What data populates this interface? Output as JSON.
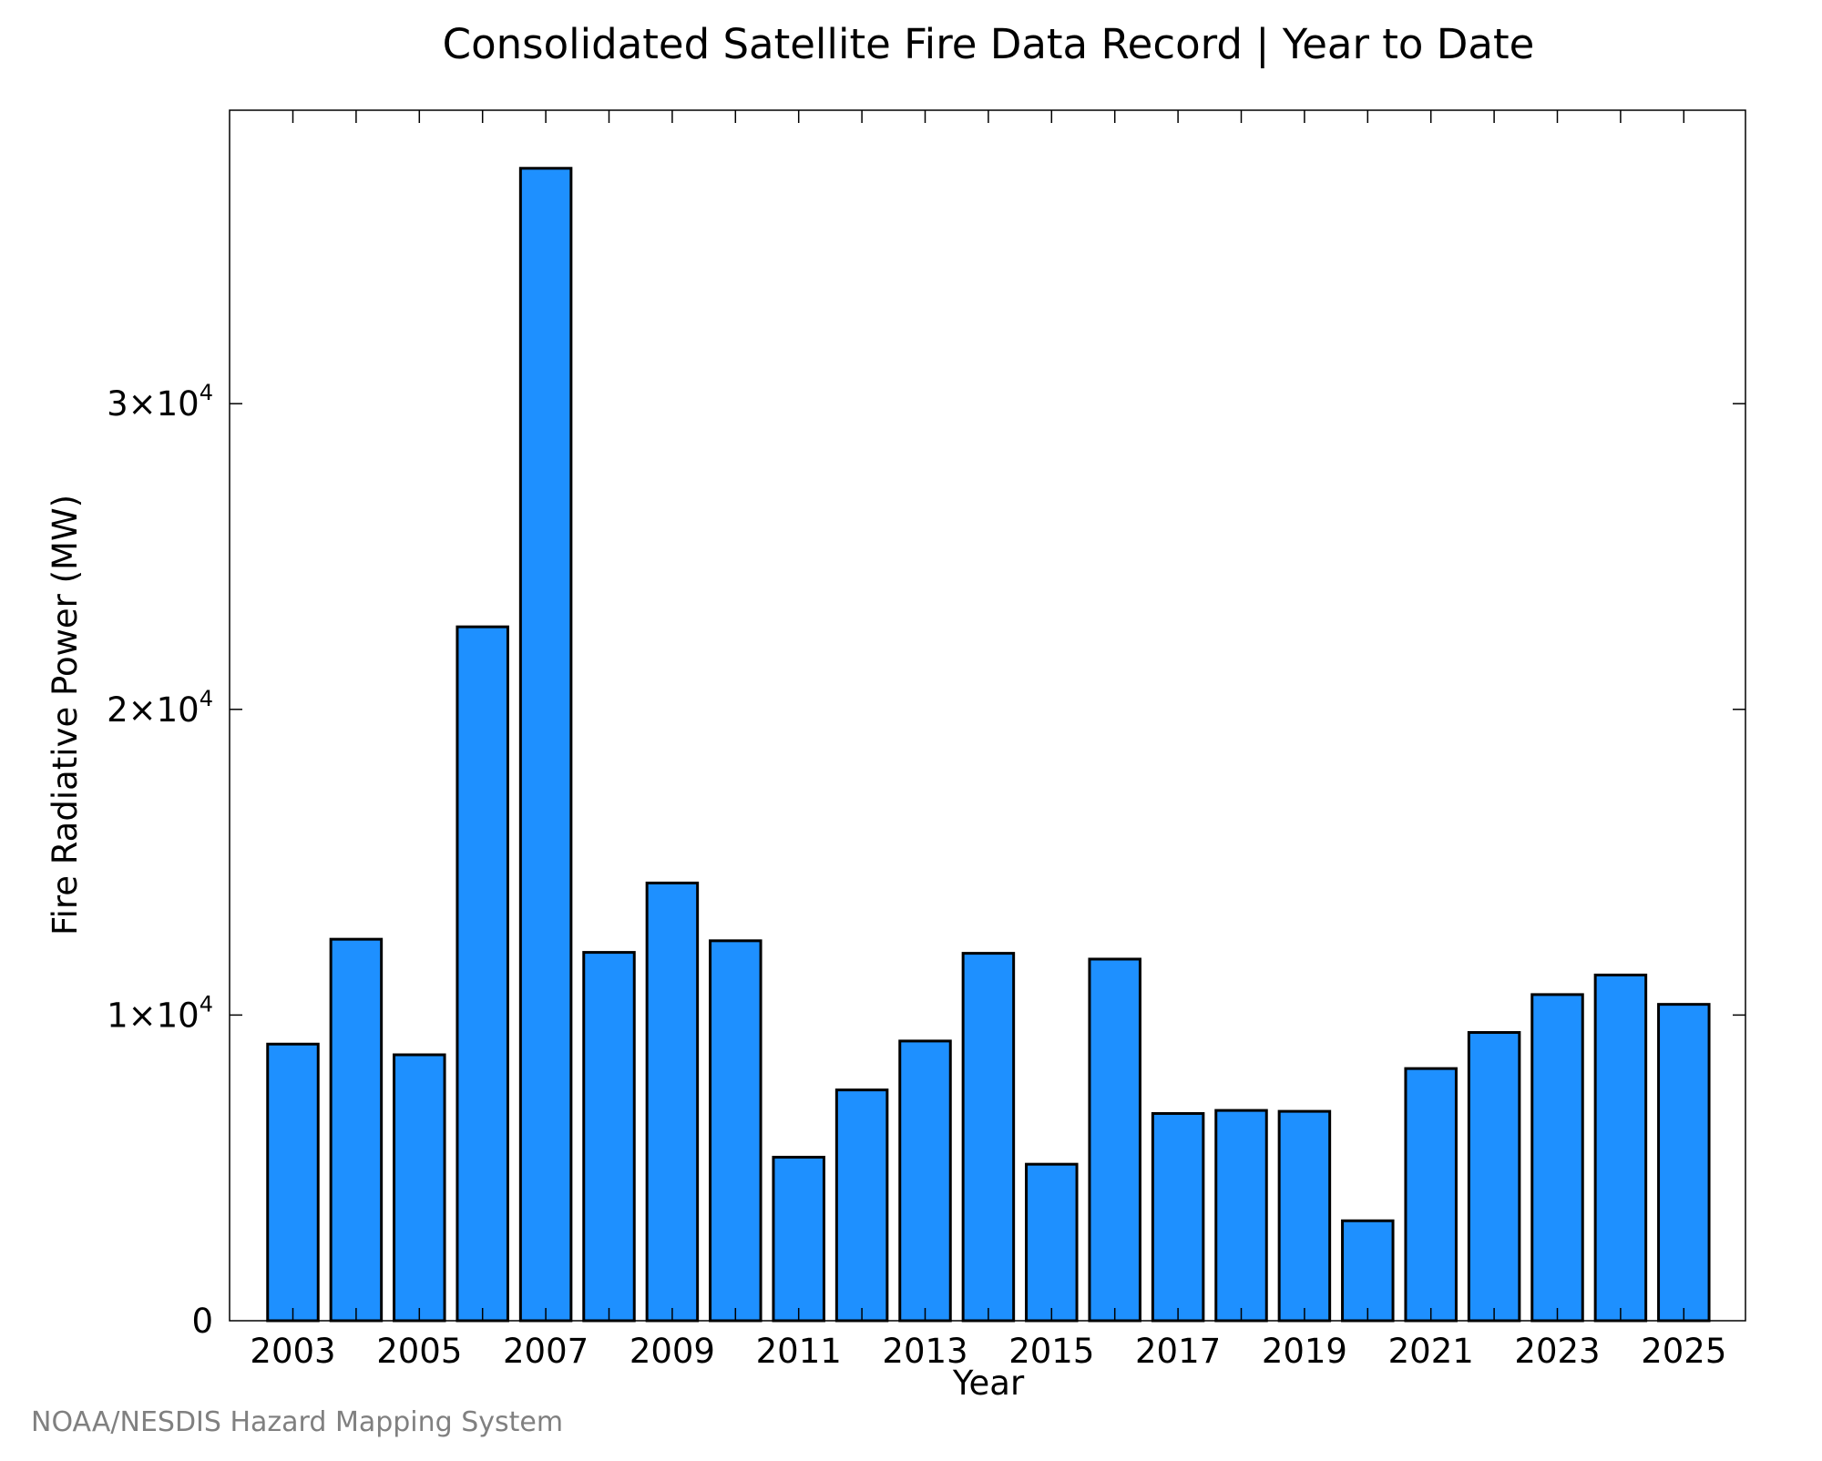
{
  "chart_data": {
    "type": "bar",
    "title": "Consolidated Satellite Fire Data Record | Year to Date",
    "xlabel": "Year",
    "ylabel": "Fire Radiative Power (MW)",
    "categories": [
      "2003",
      "2004",
      "2005",
      "2006",
      "2007",
      "2008",
      "2009",
      "2010",
      "2011",
      "2012",
      "2013",
      "2014",
      "2015",
      "2016",
      "2017",
      "2018",
      "2019",
      "2020",
      "2021",
      "2022",
      "2023",
      "2024",
      "2025"
    ],
    "values": [
      9050,
      12480,
      8700,
      22700,
      37700,
      12050,
      14320,
      12430,
      5350,
      7550,
      9150,
      12020,
      5120,
      11830,
      6780,
      6880,
      6850,
      3270,
      8250,
      9430,
      10670,
      11310,
      10350
    ],
    "ylim": [
      0,
      39600
    ],
    "y_ticks": [
      {
        "value": 0,
        "mantissa": "0",
        "exponent": ""
      },
      {
        "value": 10000,
        "mantissa": "1×10",
        "exponent": "4"
      },
      {
        "value": 20000,
        "mantissa": "2×10",
        "exponent": "4"
      },
      {
        "value": 30000,
        "mantissa": "3×10",
        "exponent": "4"
      }
    ],
    "x_tick_labels": [
      "2003",
      "2005",
      "2007",
      "2009",
      "2011",
      "2013",
      "2015",
      "2017",
      "2019",
      "2021",
      "2023",
      "2025"
    ],
    "bar_color": "#1e90ff",
    "edge_color": "#000000",
    "grid": false,
    "legend": "none",
    "credit": "NOAA/NESDIS Hazard Mapping System"
  }
}
